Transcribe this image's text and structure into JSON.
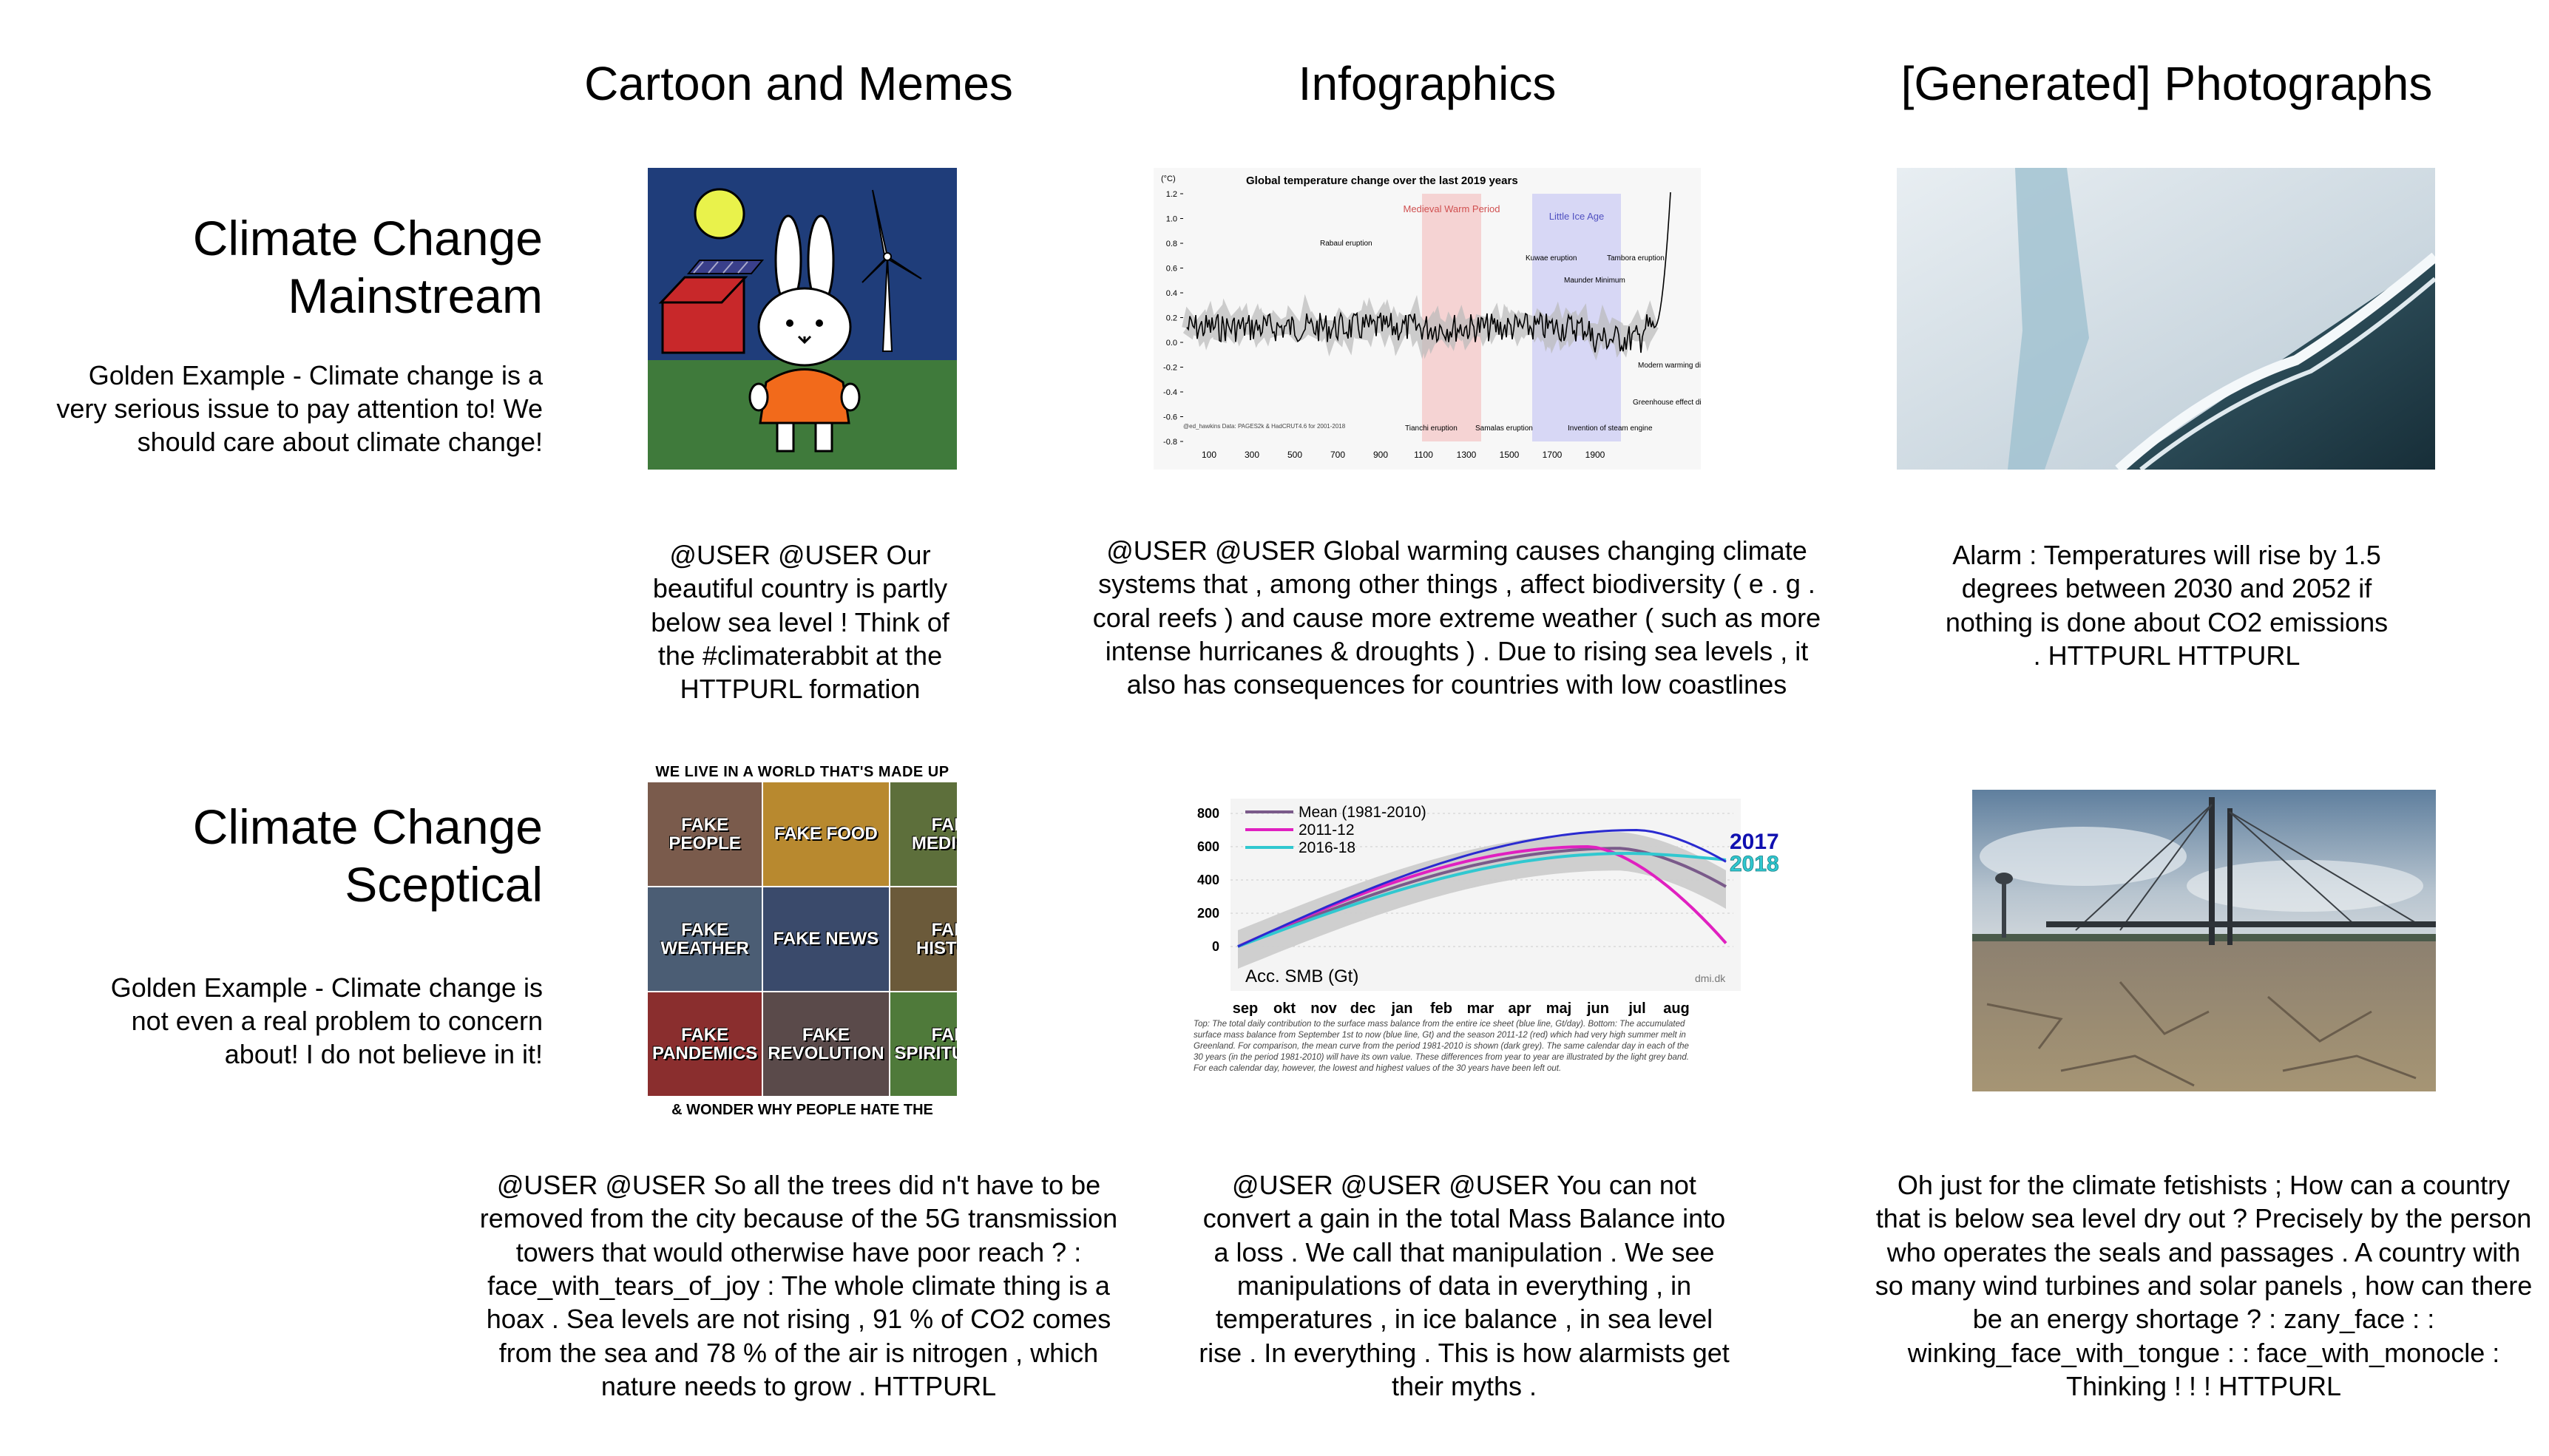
{
  "columns": {
    "cartoon": "Cartoon and Memes",
    "infographic": "Infographics",
    "photo": "[Generated] Photographs"
  },
  "rows": {
    "mainstream": {
      "title_line1": "Climate Change",
      "title_line2": "Mainstream",
      "golden": "Golden Example - Climate change is a very serious issue to pay attention to! We should care about climate change!",
      "captions": {
        "cartoon": "@USER @USER Our beautiful country is partly below sea level ! Think of the #climaterabbit at the HTTPURL formation",
        "infographic": "@USER @USER Global warming causes changing climate systems that , among other things , affect biodiversity ( e . g . coral reefs ) and cause more extreme weather ( such as more intense hurricanes & droughts ) . Due to rising sea levels , it also has consequences for countries with low coastlines",
        "photo": "Alarm : Temperatures will rise by 1.5 degrees between 2030 and 2052 if nothing is done about CO2 emissions . HTTPURL HTTPURL"
      }
    },
    "sceptical": {
      "title_line1": "Climate Change",
      "title_line2": "Sceptical",
      "golden": "Golden Example - Climate change is not even a real problem to concern about! I do not believe in it!",
      "captions": {
        "cartoon": "@USER @USER So all the trees did n't have to be removed from the city because of the 5G transmission towers that would otherwise have poor reach ? : face_with_tears_of_joy : The whole climate thing is a hoax . Sea levels are not rising , 91 % of CO2 comes from the sea and 78 % of the air is nitrogen , which nature needs to grow . HTTPURL",
        "infographic": "@USER @USER @USER You can not convert a gain in the total Mass Balance into a loss . We call that manipulation . We see manipulations of data in everything , in temperatures , in ice balance , in sea level rise . In everything . This is how alarmists get their myths .",
        "photo": "Oh just for the climate fetishists ; How can a country that is below sea level dry out ? Precisely by the person who operates the seals and passages . A country with so many wind turbines and solar panels , how can there be an energy shortage ? : zany_face : : winking_face_with_tongue : : face_with_monocle : Thinking ! ! ! HTTPURL"
      }
    }
  },
  "meme": {
    "header": "WE LIVE IN A WORLD THAT'S MADE UP OF",
    "tiles": [
      "FAKE PEOPLE",
      "FAKE FOOD",
      "FAKE MEDICINE",
      "FAKE WEATHER",
      "FAKE NEWS",
      "FAKE HISTORY",
      "FAKE PANDEMICS",
      "FAKE REVOLUTION",
      "FAKE SPIRITUALITY"
    ],
    "footer": "& WONDER WHY PEOPLE HATE THE TRUTH"
  },
  "temp_chart": {
    "title": "Global temperature change over the last 2019 years",
    "unit": "(°C)",
    "yticks": [
      "1.2",
      "1.0",
      "0.8",
      "0.6",
      "0.4",
      "0.2",
      "0.0",
      "-0.2",
      "-0.4",
      "-0.6",
      "-0.8"
    ],
    "xticks": [
      "100",
      "300",
      "500",
      "700",
      "900",
      "1100",
      "1300",
      "1500",
      "1700",
      "1900"
    ],
    "bands": [
      "Medieval Warm Period",
      "Little Ice Age"
    ],
    "annotations": [
      "Rabaul eruption",
      "Kuwae eruption",
      "Tambora eruption",
      "Maunder Minimum",
      "Tianchi eruption",
      "Samalas eruption",
      "Invention of steam engine",
      "Modern warming discovered",
      "Greenhouse effect discovered"
    ],
    "credit": "@ed_hawkins Data: PAGES2k & HadCRUT4.6 for 2001-2018"
  },
  "smb_chart": {
    "yticks": [
      "800",
      "600",
      "400",
      "200",
      "0"
    ],
    "months": [
      "sep",
      "okt",
      "nov",
      "dec",
      "jan",
      "feb",
      "mar",
      "apr",
      "maj",
      "jun",
      "jul",
      "aug"
    ],
    "legend": [
      "Mean (1981-2010)",
      "2011-12",
      "2016-18"
    ],
    "legend_colors": [
      "#7a5a8a",
      "#e020c0",
      "#30c8d0"
    ],
    "year_2017": "2017",
    "year_2018": "2018",
    "ylabel": "Acc. SMB (Gt)",
    "credit": "dmi.dk",
    "footnote": "Top: The total daily contribution to the surface mass balance from the entire ice sheet (blue line, Gt/day). Bottom: The accumulated surface mass balance from September 1st to now (blue line, Gt) and the season 2011-12 (red) which had very high summer melt in Greenland. For comparison, the mean curve from the period 1981-2010 is shown (dark grey). The same calendar day in each of the 30 years (in the period 1981-2010) will have its own value. These differences from year to year are illustrated by the light grey band. For each calendar day, however, the lowest and highest values of the 30 years have been left out."
  }
}
